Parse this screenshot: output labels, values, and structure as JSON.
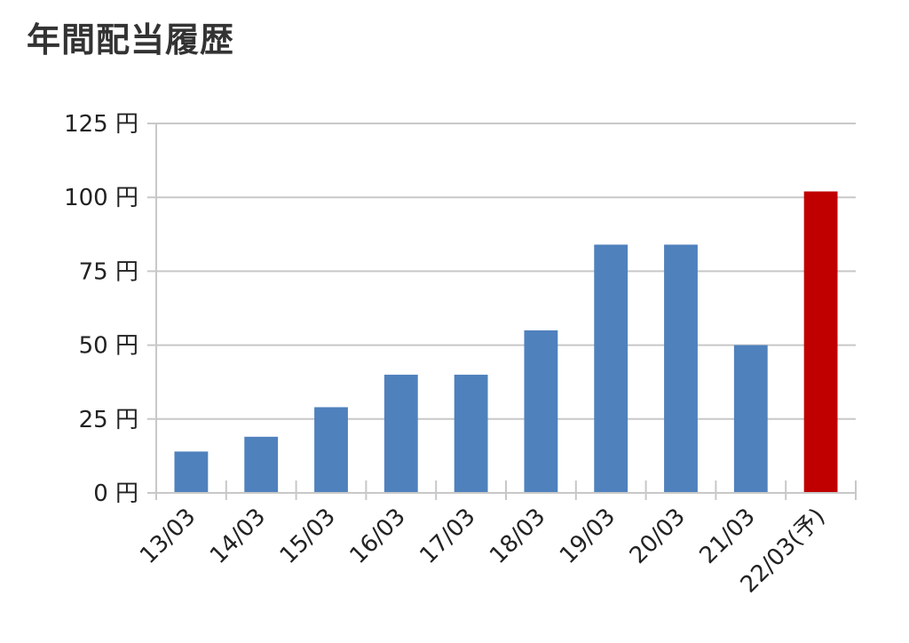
{
  "chart_data": {
    "type": "bar",
    "title": "年間配当履歴",
    "categories": [
      "13/03",
      "14/03",
      "15/03",
      "16/03",
      "17/03",
      "18/03",
      "19/03",
      "20/03",
      "21/03",
      "22/03(予)"
    ],
    "values": [
      14,
      19,
      29,
      40,
      40,
      55,
      84,
      84,
      50,
      102
    ],
    "bar_colors": [
      "#4f81bd",
      "#4f81bd",
      "#4f81bd",
      "#4f81bd",
      "#4f81bd",
      "#4f81bd",
      "#4f81bd",
      "#4f81bd",
      "#4f81bd",
      "#c00000"
    ],
    "y_ticks": [
      "0 円",
      "25 円",
      "50 円",
      "75 円",
      "100 円",
      "125 円"
    ],
    "y_tick_values": [
      0,
      25,
      50,
      75,
      100,
      125
    ],
    "ylim": [
      0,
      125
    ],
    "xlabel": "",
    "ylabel": "",
    "grid": true,
    "legend": "none",
    "colors": {
      "gridline": "#c8c8c8",
      "text": "#222222",
      "title": "#333333"
    }
  }
}
